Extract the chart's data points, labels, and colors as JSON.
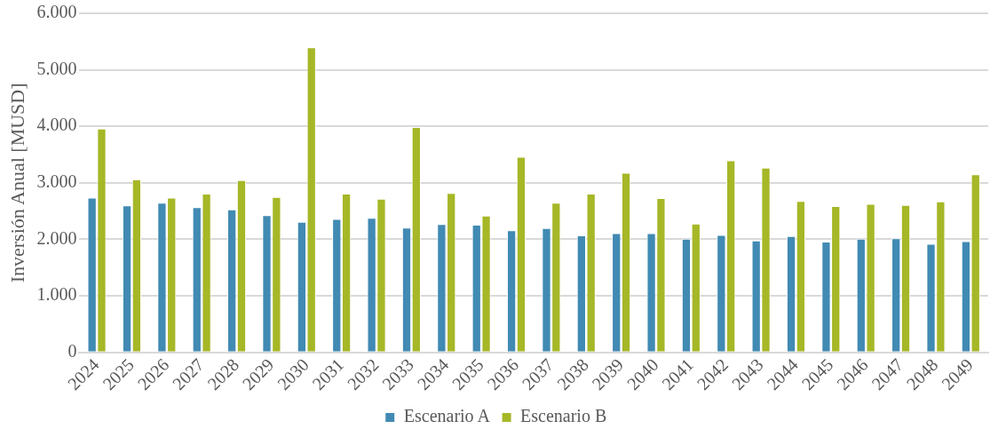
{
  "chart_data": {
    "type": "bar",
    "ylabel": "Inversión Anual [MUSD]",
    "categories": [
      "2024",
      "2025",
      "2026",
      "2027",
      "2028",
      "2029",
      "2030",
      "2031",
      "2032",
      "2033",
      "2034",
      "2035",
      "2036",
      "2037",
      "2038",
      "2039",
      "2040",
      "2041",
      "2042",
      "2043",
      "2044",
      "2045",
      "2046",
      "2047",
      "2048",
      "2049"
    ],
    "series": [
      {
        "name": "Escenario A",
        "color": "#418ab3",
        "values": [
          2740,
          2600,
          2650,
          2570,
          2530,
          2430,
          2310,
          2360,
          2380,
          2210,
          2270,
          2260,
          2160,
          2200,
          2070,
          2110,
          2110,
          2010,
          2080,
          1980,
          2060,
          1960,
          2010,
          2020,
          1920,
          1970
        ]
      },
      {
        "name": "Escenario B",
        "color": "#a6b727",
        "values": [
          3960,
          3060,
          2740,
          2810,
          3050,
          2750,
          5400,
          2810,
          2720,
          3990,
          2820,
          2420,
          3460,
          2650,
          2810,
          3180,
          2730,
          2280,
          3400,
          3270,
          2680,
          2590,
          2630,
          2610,
          2670,
          3150
        ]
      }
    ],
    "ylim": [
      0,
      6000
    ],
    "yticks": [
      {
        "value": 0,
        "label": "0"
      },
      {
        "value": 1000,
        "label": "1.000"
      },
      {
        "value": 2000,
        "label": "2.000"
      },
      {
        "value": 3000,
        "label": "3.000"
      },
      {
        "value": 4000,
        "label": "4.000"
      },
      {
        "value": 5000,
        "label": "5.000"
      },
      {
        "value": 6000,
        "label": "6.000"
      }
    ],
    "grid": "y",
    "legend": "bottom"
  }
}
